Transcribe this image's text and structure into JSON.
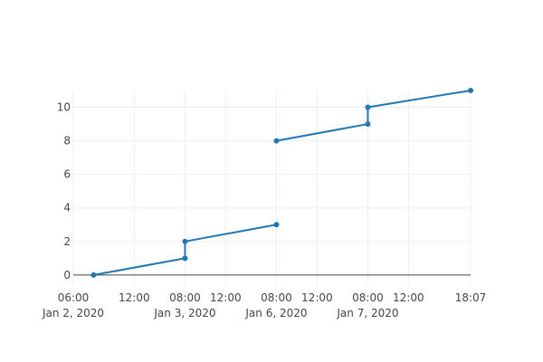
{
  "chart_data": {
    "type": "line",
    "title": "",
    "xlabel": "",
    "ylabel": "",
    "x_axis": {
      "type": "date",
      "range": [
        "2020-01-02 06:00",
        "2020-01-07 18:07"
      ],
      "ticks": [
        {
          "value": "2020-01-02 06:00",
          "label": "06:00",
          "sublabel": "Jan 2, 2020"
        },
        {
          "value": "2020-01-02 12:00",
          "label": "12:00",
          "sublabel": ""
        },
        {
          "value": "2020-01-03 08:00",
          "label": "08:00",
          "sublabel": "Jan 3, 2020"
        },
        {
          "value": "2020-01-03 12:00",
          "label": "12:00",
          "sublabel": ""
        },
        {
          "value": "2020-01-06 08:00",
          "label": "08:00",
          "sublabel": "Jan 6, 2020"
        },
        {
          "value": "2020-01-06 12:00",
          "label": "12:00",
          "sublabel": ""
        },
        {
          "value": "2020-01-07 08:00",
          "label": "08:00",
          "sublabel": "Jan 7, 2020"
        },
        {
          "value": "2020-01-07 12:00",
          "label": "12:00",
          "sublabel": ""
        },
        {
          "value": "2020-01-07 18:07",
          "label": "18:07",
          "sublabel": ""
        }
      ],
      "breaks": [
        {
          "from": "2020-01-02 17:00",
          "to": "2020-01-03 08:00"
        },
        {
          "from": "2020-01-03 17:00",
          "to": "2020-01-06 08:00"
        },
        {
          "from": "2020-01-06 17:00",
          "to": "2020-01-07 08:00"
        }
      ]
    },
    "y_axis": {
      "range": [
        -0.6,
        11
      ],
      "ticks": [
        0,
        2,
        4,
        6,
        8,
        10
      ]
    },
    "grid": true,
    "series": [
      {
        "color": "#1f77b4",
        "segments": [
          [
            {
              "x": "2020-01-02 08:00",
              "y": 0
            },
            {
              "x": "2020-01-02 17:00",
              "y": 1
            },
            {
              "x": "2020-01-03 08:00",
              "y": 2
            },
            {
              "x": "2020-01-03 17:00",
              "y": 3
            }
          ],
          [
            {
              "x": "2020-01-06 08:00",
              "y": 8
            },
            {
              "x": "2020-01-06 17:00",
              "y": 9
            },
            {
              "x": "2020-01-07 08:00",
              "y": 10
            },
            {
              "x": "2020-01-07 18:07",
              "y": 11
            }
          ]
        ]
      }
    ]
  }
}
